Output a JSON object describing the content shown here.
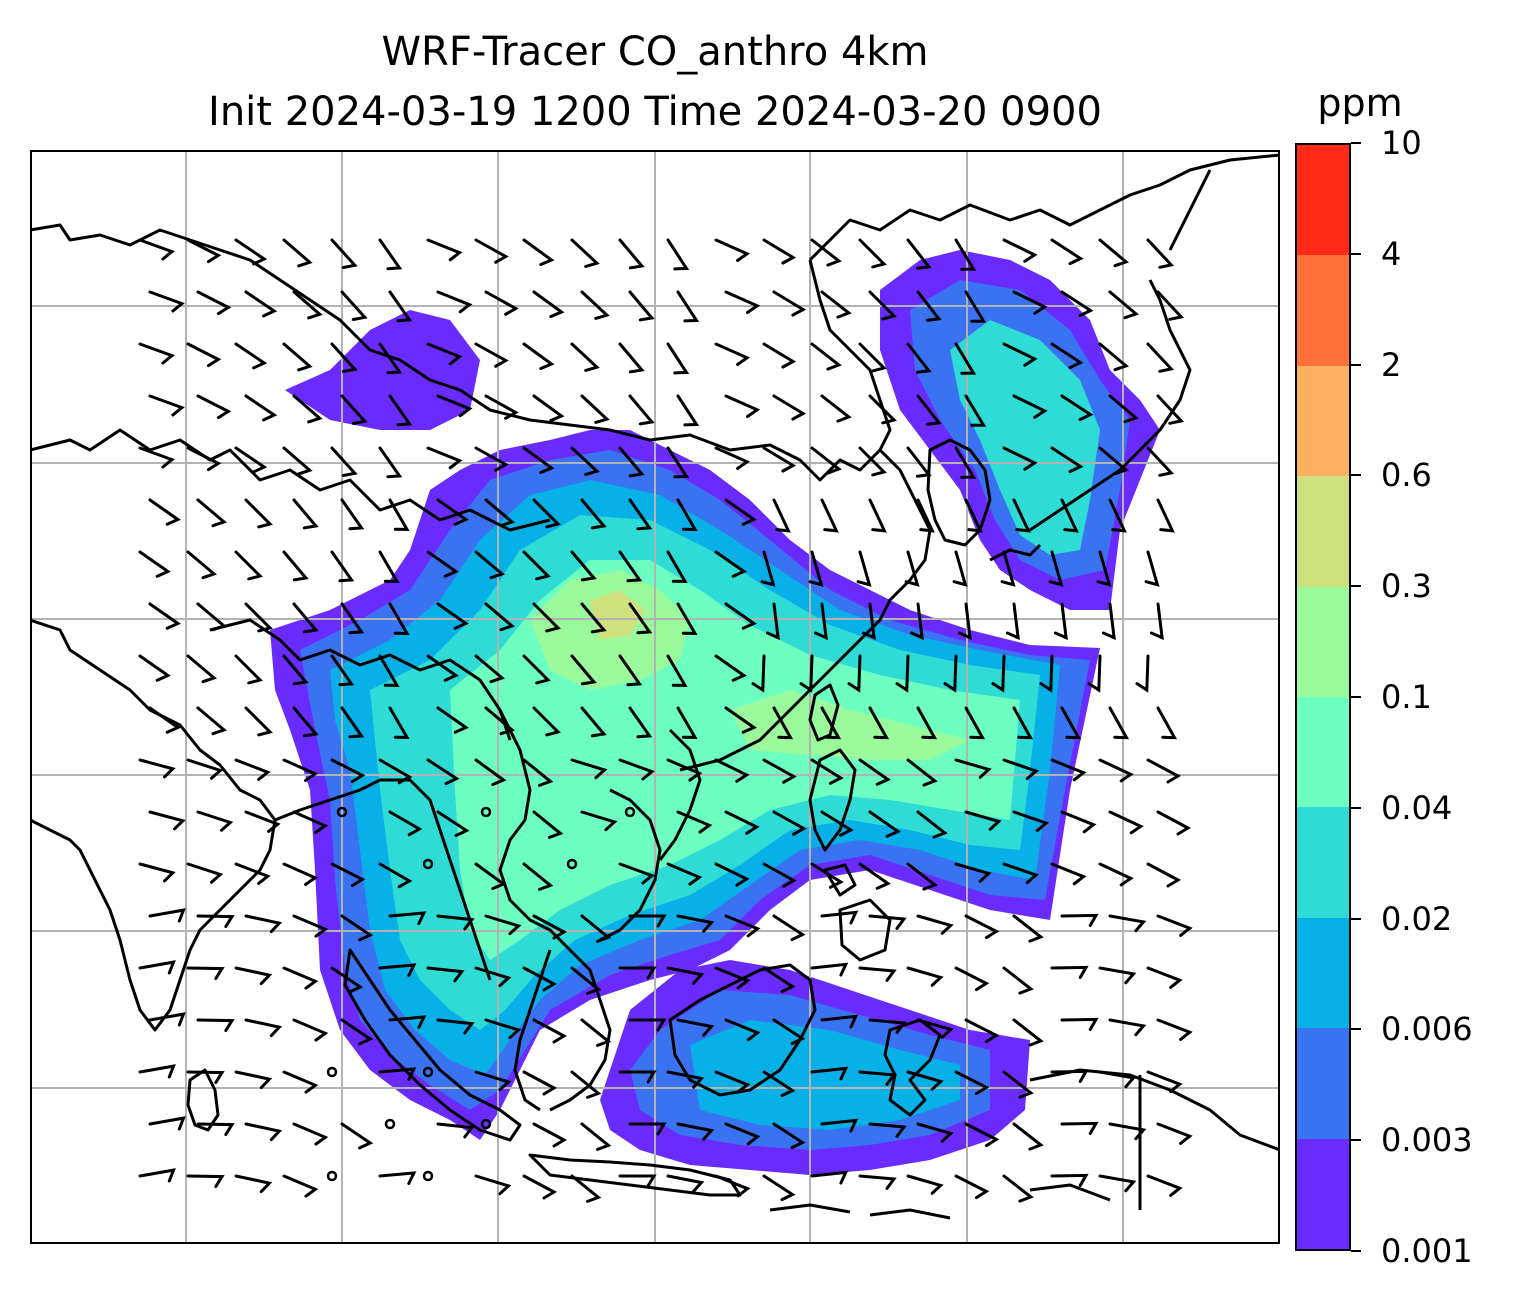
{
  "title": {
    "line1": "WRF-Tracer CO_anthro 4km",
    "line2": "Init 2024-03-19 1200 Time 2024-03-20 0900"
  },
  "colorbar": {
    "unit": "ppm",
    "ticks": [
      "0.001",
      "0.003",
      "0.006",
      "0.02",
      "0.04",
      "0.1",
      "0.3",
      "0.6",
      "2",
      "4",
      "10"
    ],
    "colors": [
      "#6a2bff",
      "#3a73f2",
      "#07b1e8",
      "#2fdcd5",
      "#6cffc1",
      "#9af99b",
      "#cfe17e",
      "#feb061",
      "#ff7139",
      "#ff2a17"
    ]
  },
  "map": {
    "land_outline_color": "#000000",
    "gridline_color": "#b3b3b3",
    "wind_barb_color": "#000000"
  }
}
